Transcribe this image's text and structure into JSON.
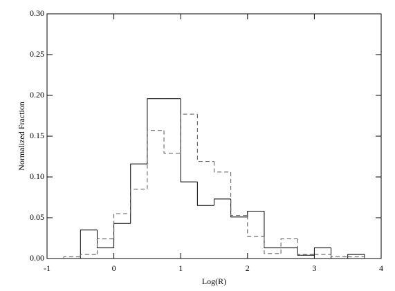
{
  "chart_data": {
    "type": "histogram",
    "x_label": "Log(R)",
    "y_label": "Normalized Fraction",
    "bins": [
      -0.75,
      -0.5,
      -0.25,
      0,
      0.25,
      0.5,
      0.75,
      1.0,
      1.25,
      1.5,
      1.75,
      2.0,
      2.25,
      2.5,
      2.75,
      3.0,
      3.25,
      3.5,
      3.75
    ],
    "series": [
      {
        "color": "#000000",
        "dashed": false,
        "values": [
          0,
          0.035,
          0.013,
          0.043,
          0.116,
          0.196,
          0.196,
          0.094,
          0.065,
          0.073,
          0.051,
          0.058,
          0.013,
          0.013,
          0.004,
          0.013,
          0,
          0.005
        ]
      },
      {
        "color": "#555555",
        "dashed": true,
        "values": [
          0.002,
          0.005,
          0.024,
          0.055,
          0.085,
          0.157,
          0.129,
          0.177,
          0.119,
          0.106,
          0.053,
          0.027,
          0.006,
          0.024,
          0.005,
          0.005,
          0.002,
          0.002
        ]
      }
    ],
    "xlim": [
      -1,
      4
    ],
    "xticks": [
      -1,
      0,
      1,
      2,
      3,
      4
    ],
    "ylim": [
      0,
      0.3
    ],
    "yticks": [
      {
        "value": 0,
        "label": "0.00"
      },
      {
        "value": 0.05,
        "label": "0.05"
      },
      {
        "value": 0.1,
        "label": "0.10"
      },
      {
        "value": 0.15,
        "label": "0.15"
      },
      {
        "value": 0.2,
        "label": "0.20"
      },
      {
        "value": 0.25,
        "label": "0.25"
      },
      {
        "value": 0.3,
        "label": "0.30"
      }
    ]
  }
}
